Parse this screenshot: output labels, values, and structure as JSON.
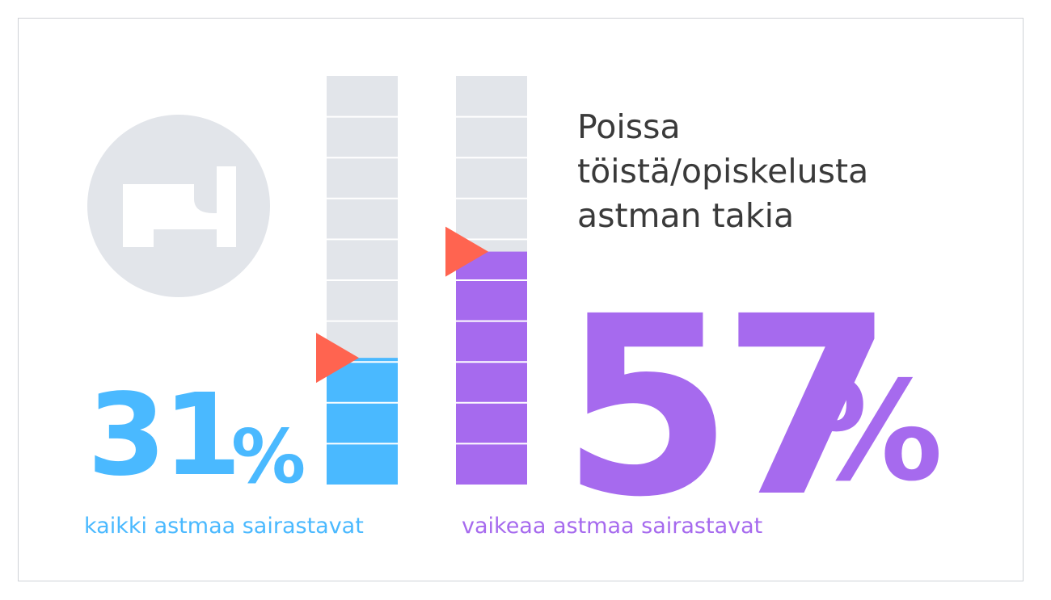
{
  "chart_data": {
    "type": "bar",
    "title": "Poissa töistä/opiskelusta astman takia",
    "title_lines": [
      "Poissa",
      "töistä/opiskelusta",
      "astman takia"
    ],
    "categories": [
      "kaikki astmaa sairastavat",
      "vaikeaa astmaa sairastavat"
    ],
    "series": [
      {
        "values": [
          31,
          57
        ]
      }
    ],
    "value_labels": [
      {
        "number": "31",
        "unit": "%"
      },
      {
        "number": "57",
        "unit": "%"
      }
    ],
    "ylim": [
      0,
      100
    ],
    "segments": 10,
    "colors": [
      "#4ab9ff",
      "#a66aee"
    ],
    "track_color": "#e2e5ea",
    "marker_color": "#ff6450",
    "icon": "bed-icon"
  }
}
